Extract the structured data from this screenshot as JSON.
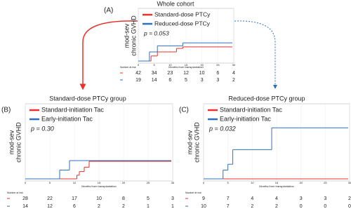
{
  "chart_data": [
    {
      "type": "step",
      "panel": "(A)",
      "title": "Whole cohort",
      "annotation": "p = 0.053",
      "ylabel": [
        "mod-sev",
        "chronic GVHD"
      ],
      "xlabel": "Months from transplantation",
      "risk_label": "Number at risk",
      "xlim": [
        0,
        30
      ],
      "xticks": [
        0,
        5,
        10,
        15,
        20,
        25,
        30
      ],
      "ylim": [
        0,
        100
      ],
      "grid": true,
      "series": [
        {
          "name": "Standard-dose PTCy",
          "color": "#e8312a",
          "x": [
            0,
            4,
            6,
            12,
            14
          ],
          "values": [
            0,
            10,
            18,
            25,
            28
          ],
          "at_risk": [
            42,
            34,
            23,
            12,
            10,
            6,
            4
          ]
        },
        {
          "name": "Reduced-dose PTCy",
          "color": "#2f6fbf",
          "x": [
            0,
            3.5,
            6,
            14
          ],
          "values": [
            0,
            18,
            30,
            36
          ],
          "at_risk": [
            19,
            14,
            6,
            5,
            3,
            3,
            2
          ]
        }
      ]
    },
    {
      "type": "step",
      "panel": "(B)",
      "title": "Standard-dose PTCy group",
      "annotation": "p = 0.30",
      "ylabel": [
        "mod-sev",
        "chronic GVHD"
      ],
      "xlabel": "Months from transplantation",
      "risk_label": "Number at risk",
      "xlim": [
        0,
        30
      ],
      "xticks": [
        0,
        5,
        10,
        15,
        20,
        25,
        30
      ],
      "ylim": [
        0,
        100
      ],
      "grid": true,
      "series": [
        {
          "name": "Standard-initiation Tac",
          "color": "#e8312a",
          "x": [
            0,
            10.5,
            11,
            12,
            13
          ],
          "values": [
            0,
            5,
            10,
            16,
            24
          ],
          "at_risk": [
            28,
            22,
            17,
            10,
            8,
            5,
            3
          ]
        },
        {
          "name": "Early-initiation Tac",
          "color": "#2f6fbf",
          "x": [
            0,
            7,
            9
          ],
          "values": [
            0,
            12,
            25
          ],
          "at_risk": [
            14,
            12,
            6,
            2,
            2,
            1,
            1
          ]
        }
      ]
    },
    {
      "type": "step",
      "panel": "(C)",
      "title": "Reduced-dose PTCy group",
      "annotation": "p = 0.032",
      "ylabel": [
        "mod-sev",
        "chronic GVHD"
      ],
      "xlabel": "Months from transplantation",
      "risk_label": "Number at risk",
      "xlim": [
        0,
        30
      ],
      "xticks": [
        0,
        5,
        10,
        15,
        20,
        25,
        30
      ],
      "ylim": [
        0,
        100
      ],
      "grid": true,
      "series": [
        {
          "name": "Standard-initiation Tac",
          "color": "#e8312a",
          "x": [
            0
          ],
          "values": [
            0
          ],
          "at_risk": [
            9,
            7,
            4,
            4,
            3,
            3,
            2
          ]
        },
        {
          "name": "Early-initiation Tac",
          "color": "#2f6fbf",
          "x": [
            0,
            4,
            5,
            6,
            14
          ],
          "values": [
            0,
            12,
            20,
            40,
            70
          ],
          "at_risk": [
            10,
            7,
            2,
            2,
            0,
            0,
            0
          ]
        }
      ]
    }
  ]
}
